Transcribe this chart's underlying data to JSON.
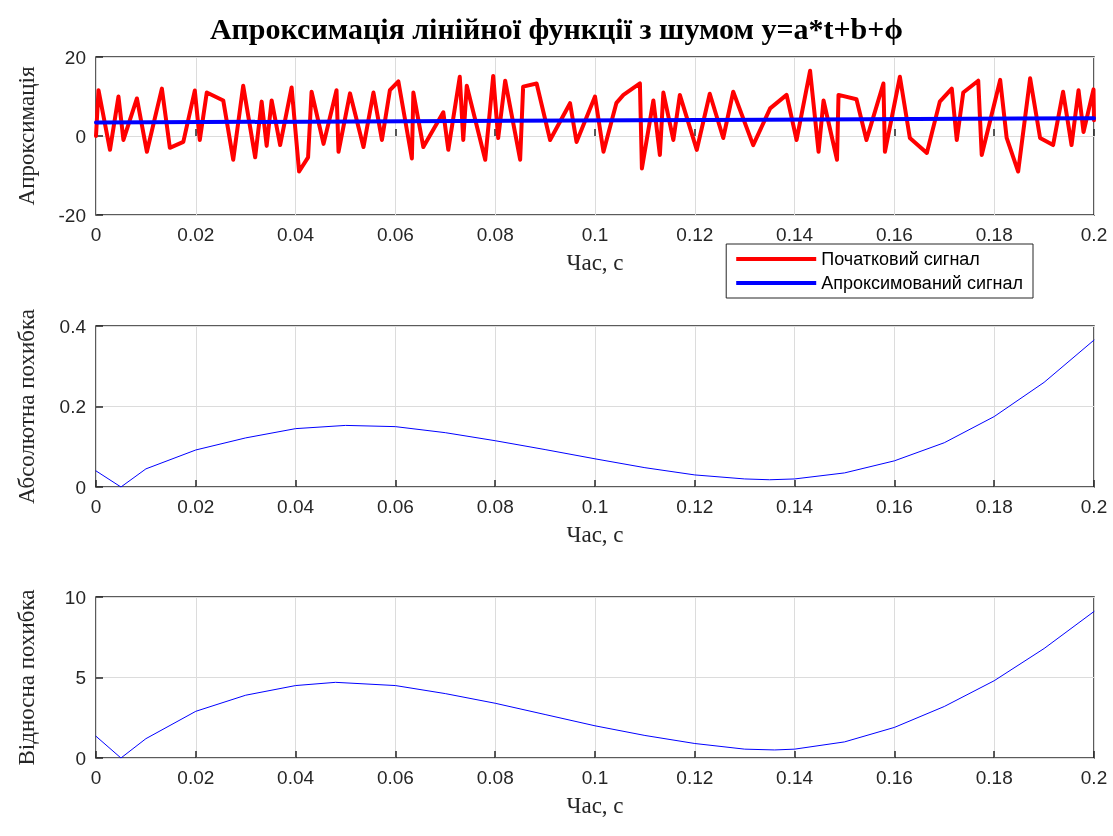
{
  "chart_data": [
    {
      "type": "line",
      "title": "Апроксимація лінійної функції з шумом y=a*t+b+ϕ",
      "xlabel": "Час, с",
      "ylabel": "Апроксимація",
      "xlim": [
        0,
        0.2
      ],
      "xticks": [
        0,
        0.02,
        0.04,
        0.06,
        0.08,
        0.1,
        0.12,
        0.14,
        0.16,
        0.18,
        0.2
      ],
      "ylim": [
        -20,
        20
      ],
      "yticks": [
        -20,
        0,
        20
      ],
      "grid": true,
      "legend": "bottom right",
      "marker": "none",
      "line_style": "solid",
      "series": [
        {
          "name": "Початковий сигнал",
          "color": "#ff0000",
          "x": [
            0,
            0.0005,
            0.0028,
            0.0045,
            0.0055,
            0.0082,
            0.0102,
            0.0132,
            0.0148,
            0.0175,
            0.0198,
            0.0208,
            0.0222,
            0.0255,
            0.0275,
            0.0295,
            0.0319,
            0.0332,
            0.0342,
            0.0352,
            0.0369,
            0.0392,
            0.0407,
            0.0425,
            0.0432,
            0.0456,
            0.0482,
            0.0486,
            0.0509,
            0.0536,
            0.0556,
            0.0573,
            0.0589,
            0.0606,
            0.0633,
            0.0636,
            0.0656,
            0.0696,
            0.0706,
            0.0729,
            0.0736,
            0.0743,
            0.078,
            0.0796,
            0.0806,
            0.082,
            0.085,
            0.0856,
            0.0883,
            0.091,
            0.095,
            0.0963,
            0.1,
            0.1017,
            0.1043,
            0.1057,
            0.109,
            0.1094,
            0.1117,
            0.113,
            0.1137,
            0.1157,
            0.117,
            0.1204,
            0.123,
            0.1257,
            0.1277,
            0.1317,
            0.1351,
            0.1384,
            0.1404,
            0.1431,
            0.1448,
            0.1458,
            0.1485,
            0.1488,
            0.1524,
            0.1544,
            0.1578,
            0.1581,
            0.1611,
            0.1631,
            0.1665,
            0.1691,
            0.1715,
            0.1725,
            0.1738,
            0.1768,
            0.1775,
            0.1812,
            0.1825,
            0.1848,
            0.1872,
            0.1892,
            0.1918,
            0.1938,
            0.1955,
            0.1969,
            0.1979,
            0.1999,
            0.2
          ],
          "values": [
            0,
            11.6,
            -3.5,
            10,
            -1,
            9.5,
            -4,
            12,
            -3,
            -1.5,
            11.5,
            -1,
            11,
            9,
            -6,
            12.7,
            -5.4,
            8.7,
            -2.5,
            9,
            -2.3,
            12.3,
            -9,
            -5.4,
            11.2,
            -2,
            11.6,
            -4,
            10.8,
            -2.8,
            11,
            -1,
            11.6,
            13.8,
            -5.7,
            11,
            -2.8,
            6,
            -3.5,
            15,
            -1,
            12.7,
            -6,
            15.2,
            -0.5,
            14,
            -6,
            12.5,
            13.3,
            -1,
            8.3,
            -1.5,
            10,
            -4,
            8.4,
            10.4,
            13.3,
            -8.2,
            9,
            -4.8,
            11,
            -1,
            10.4,
            -3.5,
            10.7,
            -0.5,
            11.2,
            -2.3,
            7,
            10.4,
            -1,
            16.5,
            -4,
            9,
            -6,
            10.4,
            9.3,
            -1,
            13.3,
            -4,
            15,
            -0.5,
            -4.3,
            8.7,
            12,
            -1,
            11,
            14,
            -4.8,
            14.2,
            -0.5,
            -9,
            14.6,
            -0.5,
            -2.3,
            11.2,
            -2.3,
            11.6,
            1,
            11.8,
            4
          ]
        },
        {
          "name": "Апроксимований сигнал",
          "color": "#0000ff",
          "x": [
            0,
            0.2
          ],
          "values": [
            3.4,
            4.5
          ]
        }
      ]
    },
    {
      "type": "line",
      "xlabel": "Час, с",
      "ylabel": "Абсолютна похибка",
      "xlim": [
        0,
        0.2
      ],
      "xticks": [
        0,
        0.02,
        0.04,
        0.06,
        0.08,
        0.1,
        0.12,
        0.14,
        0.16,
        0.18,
        0.2
      ],
      "ylim": [
        0,
        0.4
      ],
      "yticks": [
        0,
        0.2,
        0.4
      ],
      "grid": true,
      "marker": "none",
      "line_style": "solid",
      "x": [
        0,
        0.005,
        0.01,
        0.02,
        0.03,
        0.04,
        0.05,
        0.06,
        0.07,
        0.08,
        0.09,
        0.1,
        0.11,
        0.12,
        0.13,
        0.135,
        0.14,
        0.15,
        0.16,
        0.17,
        0.18,
        0.19,
        0.2
      ],
      "series": [
        {
          "color": "#0000ff",
          "values": [
            0.04,
            0,
            0.045,
            0.092,
            0.122,
            0.145,
            0.153,
            0.15,
            0.135,
            0.115,
            0.093,
            0.07,
            0.048,
            0.03,
            0.02,
            0.018,
            0.02,
            0.035,
            0.065,
            0.11,
            0.175,
            0.26,
            0.365
          ]
        }
      ]
    },
    {
      "type": "line",
      "xlabel": "Час, с",
      "ylabel": "Відносна похибка",
      "xlim": [
        0,
        0.2
      ],
      "xticks": [
        0,
        0.02,
        0.04,
        0.06,
        0.08,
        0.1,
        0.12,
        0.14,
        0.16,
        0.18,
        0.2
      ],
      "ylim": [
        0,
        10
      ],
      "yticks": [
        0,
        5,
        10
      ],
      "grid": true,
      "marker": "none",
      "line_style": "solid",
      "x": [
        0,
        0.005,
        0.01,
        0.02,
        0.03,
        0.04,
        0.048,
        0.06,
        0.07,
        0.08,
        0.09,
        0.1,
        0.11,
        0.12,
        0.13,
        0.136,
        0.14,
        0.15,
        0.16,
        0.17,
        0.18,
        0.19,
        0.2
      ],
      "series": [
        {
          "color": "#0000ff",
          "values": [
            1.35,
            0,
            1.2,
            2.9,
            3.9,
            4.5,
            4.7,
            4.5,
            4.0,
            3.4,
            2.7,
            2.0,
            1.4,
            0.9,
            0.55,
            0.5,
            0.55,
            1.0,
            1.9,
            3.2,
            4.8,
            6.8,
            9.1
          ]
        }
      ]
    }
  ]
}
